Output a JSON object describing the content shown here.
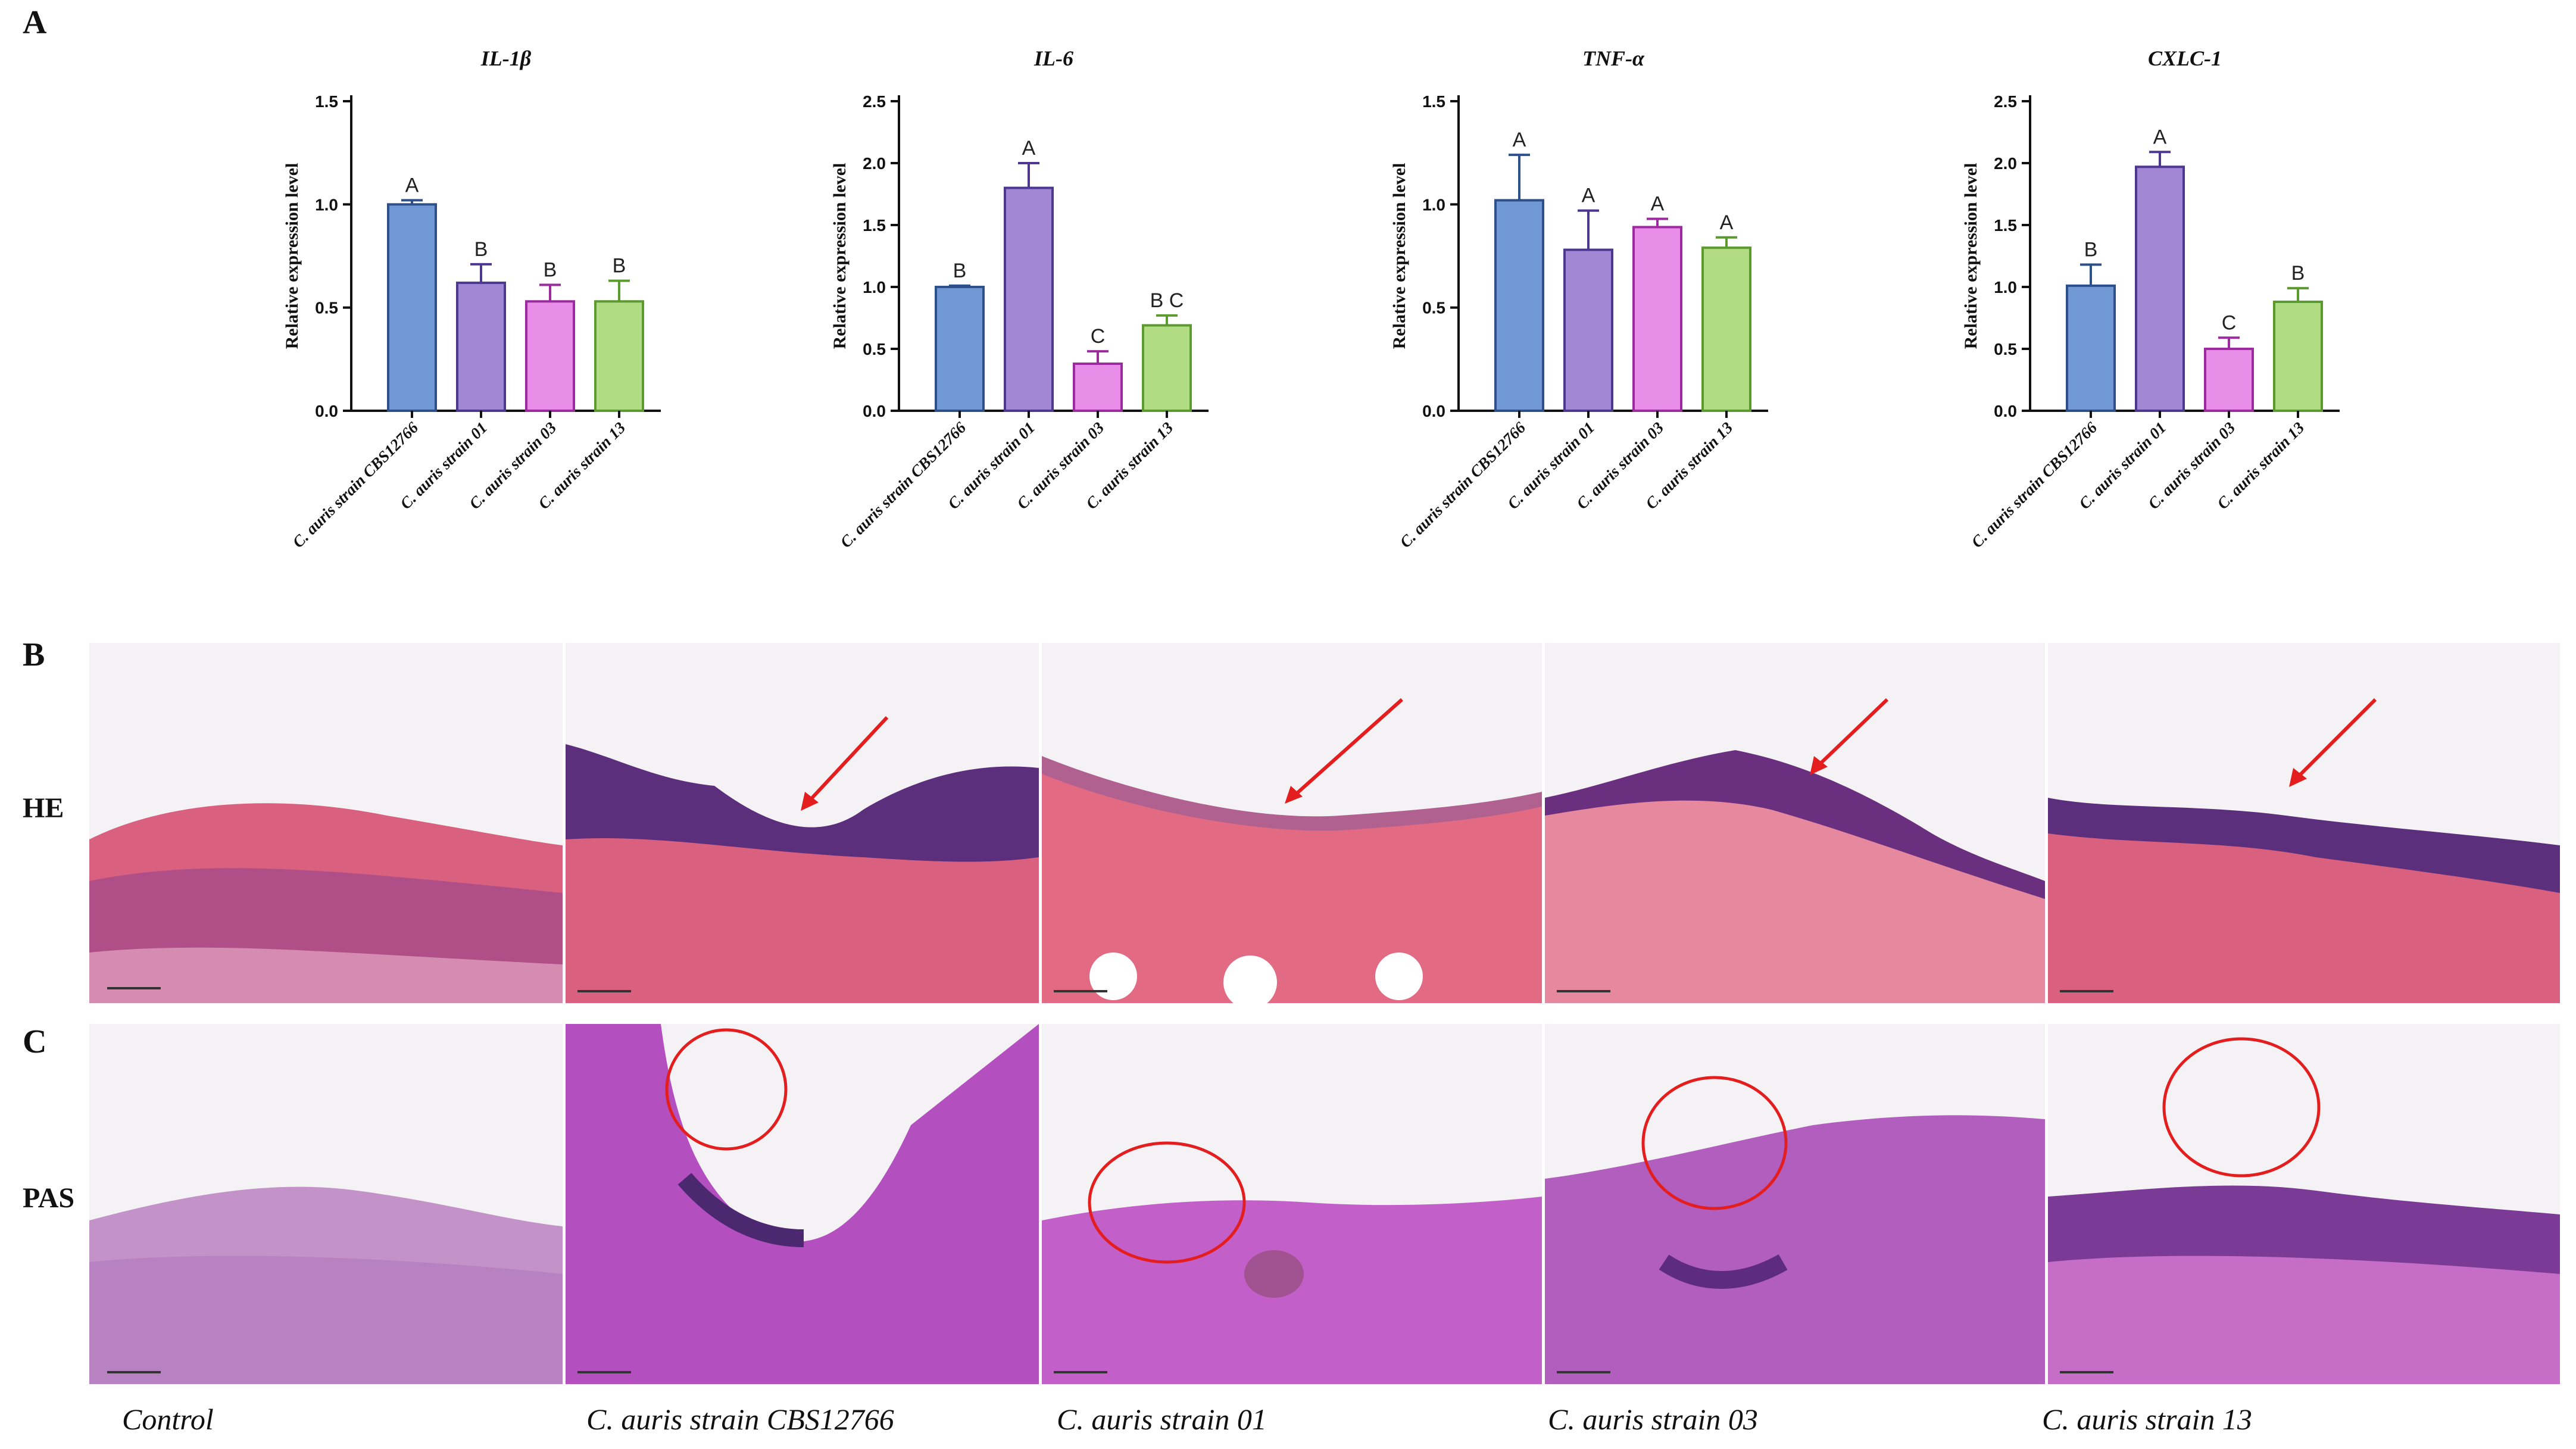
{
  "panels": {
    "a": "A",
    "b": "B",
    "c": "C"
  },
  "rows": {
    "he": "HE",
    "pas": "PAS"
  },
  "captions": [
    "Control",
    "C. auris strain CBS12766",
    "C. auris strain 01",
    "C. auris strain 03",
    "C. auris strain 13"
  ],
  "colors": {
    "fill": [
      "#6f98d4",
      "#a288d4",
      "#e98ee8",
      "#b2dc84"
    ],
    "stroke": [
      "#2d4f8a",
      "#4d3890",
      "#9b2b9e",
      "#5a9a2f"
    ]
  },
  "chart_data": [
    {
      "type": "bar",
      "title": "IL-1β",
      "ylabel": "Relative expression level",
      "ylim": [
        0,
        1.5
      ],
      "yticks": [
        "0.0",
        "0.5",
        "1.0",
        "1.5"
      ],
      "categories": [
        "C. auris strain CBS12766",
        "C. auris strain 01",
        "C. auris strain 03",
        "C. auris strain 13"
      ],
      "values": [
        1.0,
        0.62,
        0.53,
        0.53
      ],
      "errors": [
        0.02,
        0.09,
        0.08,
        0.1
      ],
      "labels": [
        "A",
        "B",
        "B",
        "B"
      ]
    },
    {
      "type": "bar",
      "title": "IL-6",
      "ylabel": "Relative expression level",
      "ylim": [
        0,
        2.5
      ],
      "yticks": [
        "0.0",
        "0.5",
        "1.0",
        "1.5",
        "2.0",
        "2.5"
      ],
      "categories": [
        "C. auris strain CBS12766",
        "C. auris strain 01",
        "C. auris strain 03",
        "C. auris strain 13"
      ],
      "values": [
        1.0,
        1.8,
        0.38,
        0.69
      ],
      "errors": [
        0.01,
        0.2,
        0.1,
        0.08
      ],
      "labels": [
        "B",
        "A",
        "C",
        "B C"
      ]
    },
    {
      "type": "bar",
      "title": "TNF-α",
      "ylabel": "Relative expression level",
      "ylim": [
        0,
        1.5
      ],
      "yticks": [
        "0.0",
        "0.5",
        "1.0",
        "1.5"
      ],
      "categories": [
        "C. auris strain CBS12766",
        "C. auris strain 01",
        "C. auris strain 03",
        "C. auris strain 13"
      ],
      "values": [
        1.02,
        0.78,
        0.89,
        0.79
      ],
      "errors": [
        0.22,
        0.19,
        0.04,
        0.05
      ],
      "labels": [
        "A",
        "A",
        "A",
        "A"
      ]
    },
    {
      "type": "bar",
      "title": "CXLC-1",
      "ylabel": "Relative expression level",
      "ylim": [
        0,
        2.5
      ],
      "yticks": [
        "0.0",
        "0.5",
        "1.0",
        "1.5",
        "2.0",
        "2.5"
      ],
      "categories": [
        "C. auris strain CBS12766",
        "C. auris strain 01",
        "C. auris strain 03",
        "C. auris strain 13"
      ],
      "values": [
        1.01,
        1.97,
        0.5,
        0.88
      ],
      "errors": [
        0.17,
        0.12,
        0.09,
        0.11
      ],
      "labels": [
        "B",
        "A",
        "C",
        "B"
      ]
    }
  ]
}
